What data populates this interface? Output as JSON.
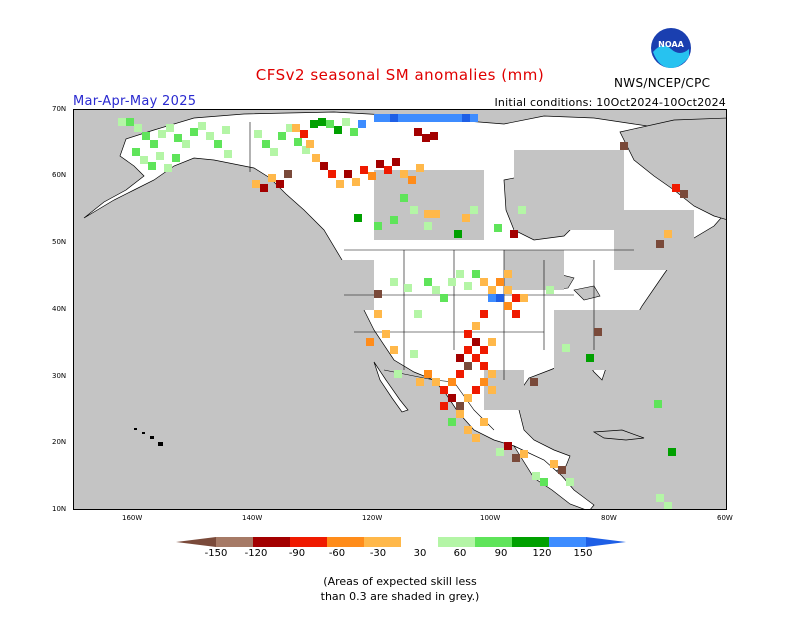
{
  "header": {
    "title": "CFSv2 seasonal SM anomalies (mm)",
    "season": "Mar-Apr-May 2025",
    "initial_conditions": "Initial conditions: 10Oct2024-10Oct2024",
    "agency": "NWS/NCEP/CPC"
  },
  "logo": {
    "text": "NOAA"
  },
  "map": {
    "lon_range": [
      -190,
      -60
    ],
    "lat_range": [
      10,
      70
    ],
    "lat_labels": [
      "70N",
      "60N",
      "50N",
      "40N",
      "30N",
      "20N",
      "10N"
    ],
    "lon_labels": [
      "160W",
      "140W",
      "120W",
      "100W",
      "80W",
      "60W"
    ],
    "land_color": "#ffffff",
    "ocean_color": "#c4c4c4",
    "skill_mask_color": "#c4c4c4"
  },
  "legend": {
    "labels": [
      "-150",
      "-120",
      "-90",
      "-60",
      "-30",
      "30",
      "60",
      "90",
      "120",
      "150"
    ],
    "colors": [
      "#7a4a3a",
      "#a67a66",
      "#a30000",
      "#ef1a00",
      "#ff8c1a",
      "#ffb84a",
      "#ffffff",
      "#b4f5a6",
      "#5fe45a",
      "#00a000",
      "#3d8cff",
      "#1e5fe6"
    ]
  },
  "note": {
    "line1": "(Areas of expected skill less",
    "line2": "than 0.3 are shaded in grey.)"
  }
}
